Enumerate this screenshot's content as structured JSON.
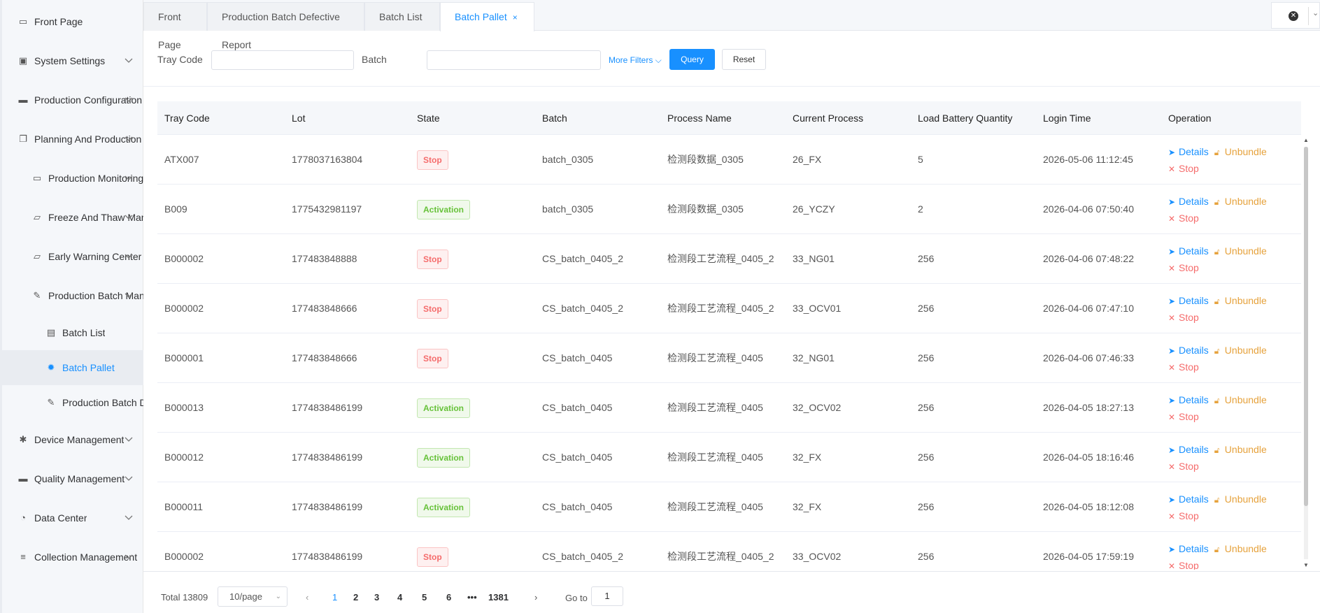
{
  "sidebar": {
    "items": [
      {
        "label": "Front Page",
        "icon": "monitor-icon",
        "chevron": false,
        "indent": 0
      },
      {
        "label": "System Settings",
        "icon": "user-badge-icon",
        "chevron": true,
        "indent": 0
      },
      {
        "label": "Production Configuration",
        "icon": "briefcase-icon",
        "chevron": true,
        "indent": 0
      },
      {
        "label": "Planning And Production",
        "icon": "window-stack-icon",
        "chevron": true,
        "indent": 0
      },
      {
        "label": "Production Monitoring",
        "icon": "monitor-gear-icon",
        "chevron": true,
        "indent": 1
      },
      {
        "label": "Freeze And Thaw Mana",
        "icon": "folder-icon",
        "chevron": true,
        "indent": 1
      },
      {
        "label": "Early Warning Center",
        "icon": "folder-icon",
        "chevron": true,
        "indent": 1
      },
      {
        "label": "Production Batch Man",
        "icon": "edit-doc-icon",
        "chevron": true,
        "indent": 1
      },
      {
        "label": "Batch List",
        "icon": "list-doc-icon",
        "chevron": false,
        "indent": 2
      },
      {
        "label": "Batch Pallet",
        "icon": "gear-icon",
        "chevron": false,
        "indent": 2,
        "active": true
      },
      {
        "label": "Production Batch D",
        "icon": "edit-doc-icon",
        "chevron": false,
        "indent": 2
      },
      {
        "label": "Device Management",
        "icon": "asterisk-icon",
        "chevron": true,
        "indent": 0
      },
      {
        "label": "Quality Management",
        "icon": "briefcase-icon",
        "chevron": true,
        "indent": 0
      },
      {
        "label": "Data Center",
        "icon": "pie-chart-icon",
        "chevron": true,
        "indent": 0
      },
      {
        "label": "Collection Management",
        "icon": "database-icon",
        "chevron": true,
        "indent": 0
      }
    ]
  },
  "tabs": [
    {
      "label": "Front Page"
    },
    {
      "label": "Production Batch Defective Report"
    },
    {
      "label": "Batch List"
    },
    {
      "label": "Batch Pallet",
      "active": true,
      "close": "×"
    }
  ],
  "filter": {
    "tray_label": "Tray Code",
    "tray_value": "",
    "batch_label": "Batch",
    "batch_value": "",
    "more_filters": "More Filters",
    "query": "Query",
    "reset": "Reset"
  },
  "table": {
    "columns": [
      "Tray Code",
      "Lot",
      "State",
      "Batch",
      "Process Name",
      "Current Process",
      "Load Battery Quantity",
      "Login Time",
      "Operation"
    ],
    "op_labels": {
      "details": "Details",
      "unbundle": "Unbundle",
      "stop": "Stop"
    },
    "rows": [
      {
        "tray": "ATX007",
        "lot": "1778037163804",
        "state": "Stop",
        "batch": "batch_0305",
        "process": "检测段数据_0305",
        "current": "26_FX",
        "qty": "5",
        "time": "2026-05-06 11:12:45"
      },
      {
        "tray": "B009",
        "lot": "1775432981197",
        "state": "Activation",
        "batch": "batch_0305",
        "process": "检测段数据_0305",
        "current": "26_YCZY",
        "qty": "2",
        "time": "2026-04-06 07:50:40"
      },
      {
        "tray": "B000002",
        "lot": "177483848888",
        "state": "Stop",
        "batch": "CS_batch_0405_2",
        "process": "检测段工艺流程_0405_2",
        "current": "33_NG01",
        "qty": "256",
        "time": "2026-04-06 07:48:22"
      },
      {
        "tray": "B000002",
        "lot": "177483848666",
        "state": "Stop",
        "batch": "CS_batch_0405_2",
        "process": "检测段工艺流程_0405_2",
        "current": "33_OCV01",
        "qty": "256",
        "time": "2026-04-06 07:47:10"
      },
      {
        "tray": "B000001",
        "lot": "177483848666",
        "state": "Stop",
        "batch": "CS_batch_0405",
        "process": "检测段工艺流程_0405",
        "current": "32_NG01",
        "qty": "256",
        "time": "2026-04-06 07:46:33"
      },
      {
        "tray": "B000013",
        "lot": "1774838486199",
        "state": "Activation",
        "batch": "CS_batch_0405",
        "process": "检测段工艺流程_0405",
        "current": "32_OCV02",
        "qty": "256",
        "time": "2026-04-05 18:27:13"
      },
      {
        "tray": "B000012",
        "lot": "1774838486199",
        "state": "Activation",
        "batch": "CS_batch_0405",
        "process": "检测段工艺流程_0405",
        "current": "32_FX",
        "qty": "256",
        "time": "2026-04-05 18:16:46"
      },
      {
        "tray": "B000011",
        "lot": "1774838486199",
        "state": "Activation",
        "batch": "CS_batch_0405",
        "process": "检测段工艺流程_0405",
        "current": "32_FX",
        "qty": "256",
        "time": "2026-04-05 18:12:08"
      },
      {
        "tray": "B000002",
        "lot": "1774838486199",
        "state": "Stop",
        "batch": "CS_batch_0405_2",
        "process": "检测段工艺流程_0405_2",
        "current": "33_OCV02",
        "qty": "256",
        "time": "2026-04-05 17:59:19"
      }
    ]
  },
  "pagination": {
    "total": "Total 13809",
    "page_size": "10/page",
    "pages": [
      "1",
      "2",
      "3",
      "4",
      "5",
      "6",
      "•••",
      "1381"
    ],
    "current_page": "1",
    "goto_label": "Go to",
    "goto_value": "1"
  }
}
